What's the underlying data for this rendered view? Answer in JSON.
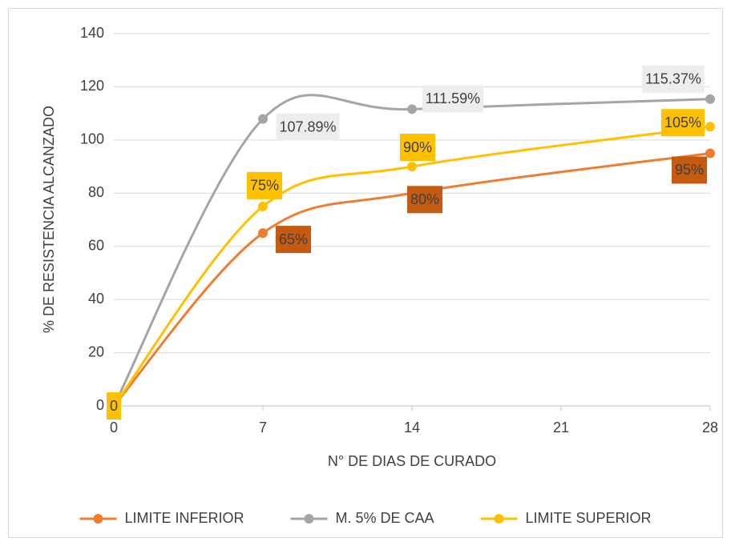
{
  "chart_data": {
    "type": "line",
    "x": [
      0,
      7,
      14,
      28
    ],
    "xlim": [
      0,
      28
    ],
    "xticks": [
      0,
      7,
      14,
      21,
      28
    ],
    "ylim": [
      0,
      140
    ],
    "yticks": [
      0,
      20,
      40,
      60,
      80,
      100,
      120,
      140
    ],
    "xlabel": "N° DE DIAS DE CURADO",
    "ylabel": "% DE RESISTENCIA ALCANZADO",
    "grid": true,
    "legend": "bottom",
    "smooth": true,
    "series": [
      {
        "name": "LIMITE INFERIOR",
        "color": "#ED7D31",
        "label_color": "#C55A11",
        "values": [
          0,
          65,
          80,
          95
        ],
        "value_labels": [
          null,
          "65%",
          "80%",
          "95%"
        ]
      },
      {
        "name": "M. 5% DE CAA",
        "color": "#A5A5A5",
        "label_color": "#EDEDED",
        "values": [
          0,
          107.89,
          111.59,
          115.37
        ],
        "value_labels": [
          null,
          "107.89%",
          "111.59%",
          "115.37%"
        ]
      },
      {
        "name": "LIMITE SUPERIOR",
        "color": "#FFC000",
        "label_color": "#FFC000",
        "values": [
          0,
          75,
          90,
          105
        ],
        "value_labels": [
          "0",
          "75%",
          "90%",
          "105%"
        ]
      }
    ]
  }
}
